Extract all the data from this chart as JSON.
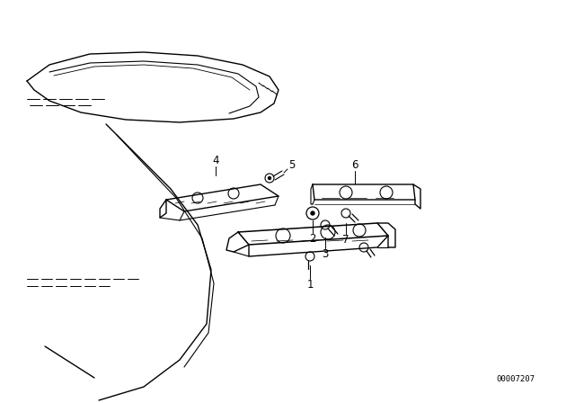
{
  "background_color": "#ffffff",
  "border_color": "#000000",
  "part_number": "00007207",
  "line_color": "#000000",
  "line_width": 0.8,
  "label_fontsize": 8.5
}
